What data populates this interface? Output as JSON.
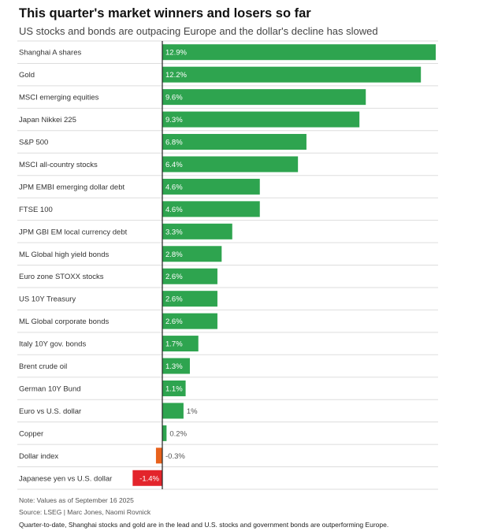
{
  "header": {
    "title": "This quarter's market winners and losers so far",
    "subtitle": "US stocks and bonds are outpacing Europe and the dollar's decline has slowed"
  },
  "footer": {
    "note": "Note: Values as of September 16 2025",
    "source": "Source: LSEG  | Marc Jones, Naomi Rovnick",
    "caption": "Quarter-to-date, Shanghai stocks and gold are in the lead and U.S. stocks and government bonds are outperforming Europe."
  },
  "colors": {
    "positive": "#2ea44f",
    "small_negative": "#e8621c",
    "large_negative": "#e3242b",
    "gridline": "#dddddd",
    "axis": "#222222"
  },
  "chart_data": {
    "type": "bar",
    "orientation": "horizontal",
    "title": "This quarter's market winners and losers so far",
    "subtitle": "US stocks and bonds are outpacing Europe and the dollar's decline has slowed",
    "xlim": [
      -1.4,
      12.9
    ],
    "grid": true,
    "categories": [
      "Shanghai A shares",
      "Gold",
      "MSCI emerging equities",
      "Japan Nikkei 225",
      "S&P 500",
      "MSCI all-country stocks",
      "JPM EMBI emerging dollar debt",
      "FTSE 100",
      "JPM GBI EM local currency debt",
      "ML Global high yield bonds",
      "Euro zone STOXX stocks",
      "US 10Y Treasury",
      "ML Global corporate bonds",
      "Italy 10Y gov. bonds",
      "Brent crude oil",
      "German 10Y Bund",
      "Euro vs U.S. dollar",
      "Copper",
      "Dollar index",
      "Japanese yen vs U.S. dollar"
    ],
    "values": [
      12.9,
      12.2,
      9.6,
      9.3,
      6.8,
      6.4,
      4.6,
      4.6,
      3.3,
      2.8,
      2.6,
      2.6,
      2.6,
      1.7,
      1.3,
      1.1,
      1.0,
      0.2,
      -0.3,
      -1.4
    ],
    "labels": [
      "12.9%",
      "12.2%",
      "9.6%",
      "9.3%",
      "6.8%",
      "6.4%",
      "4.6%",
      "4.6%",
      "3.3%",
      "2.8%",
      "2.6%",
      "2.6%",
      "2.6%",
      "1.7%",
      "1.3%",
      "1.1%",
      "1%",
      "0.2%",
      "-0.3%",
      "-1.4%"
    ]
  }
}
